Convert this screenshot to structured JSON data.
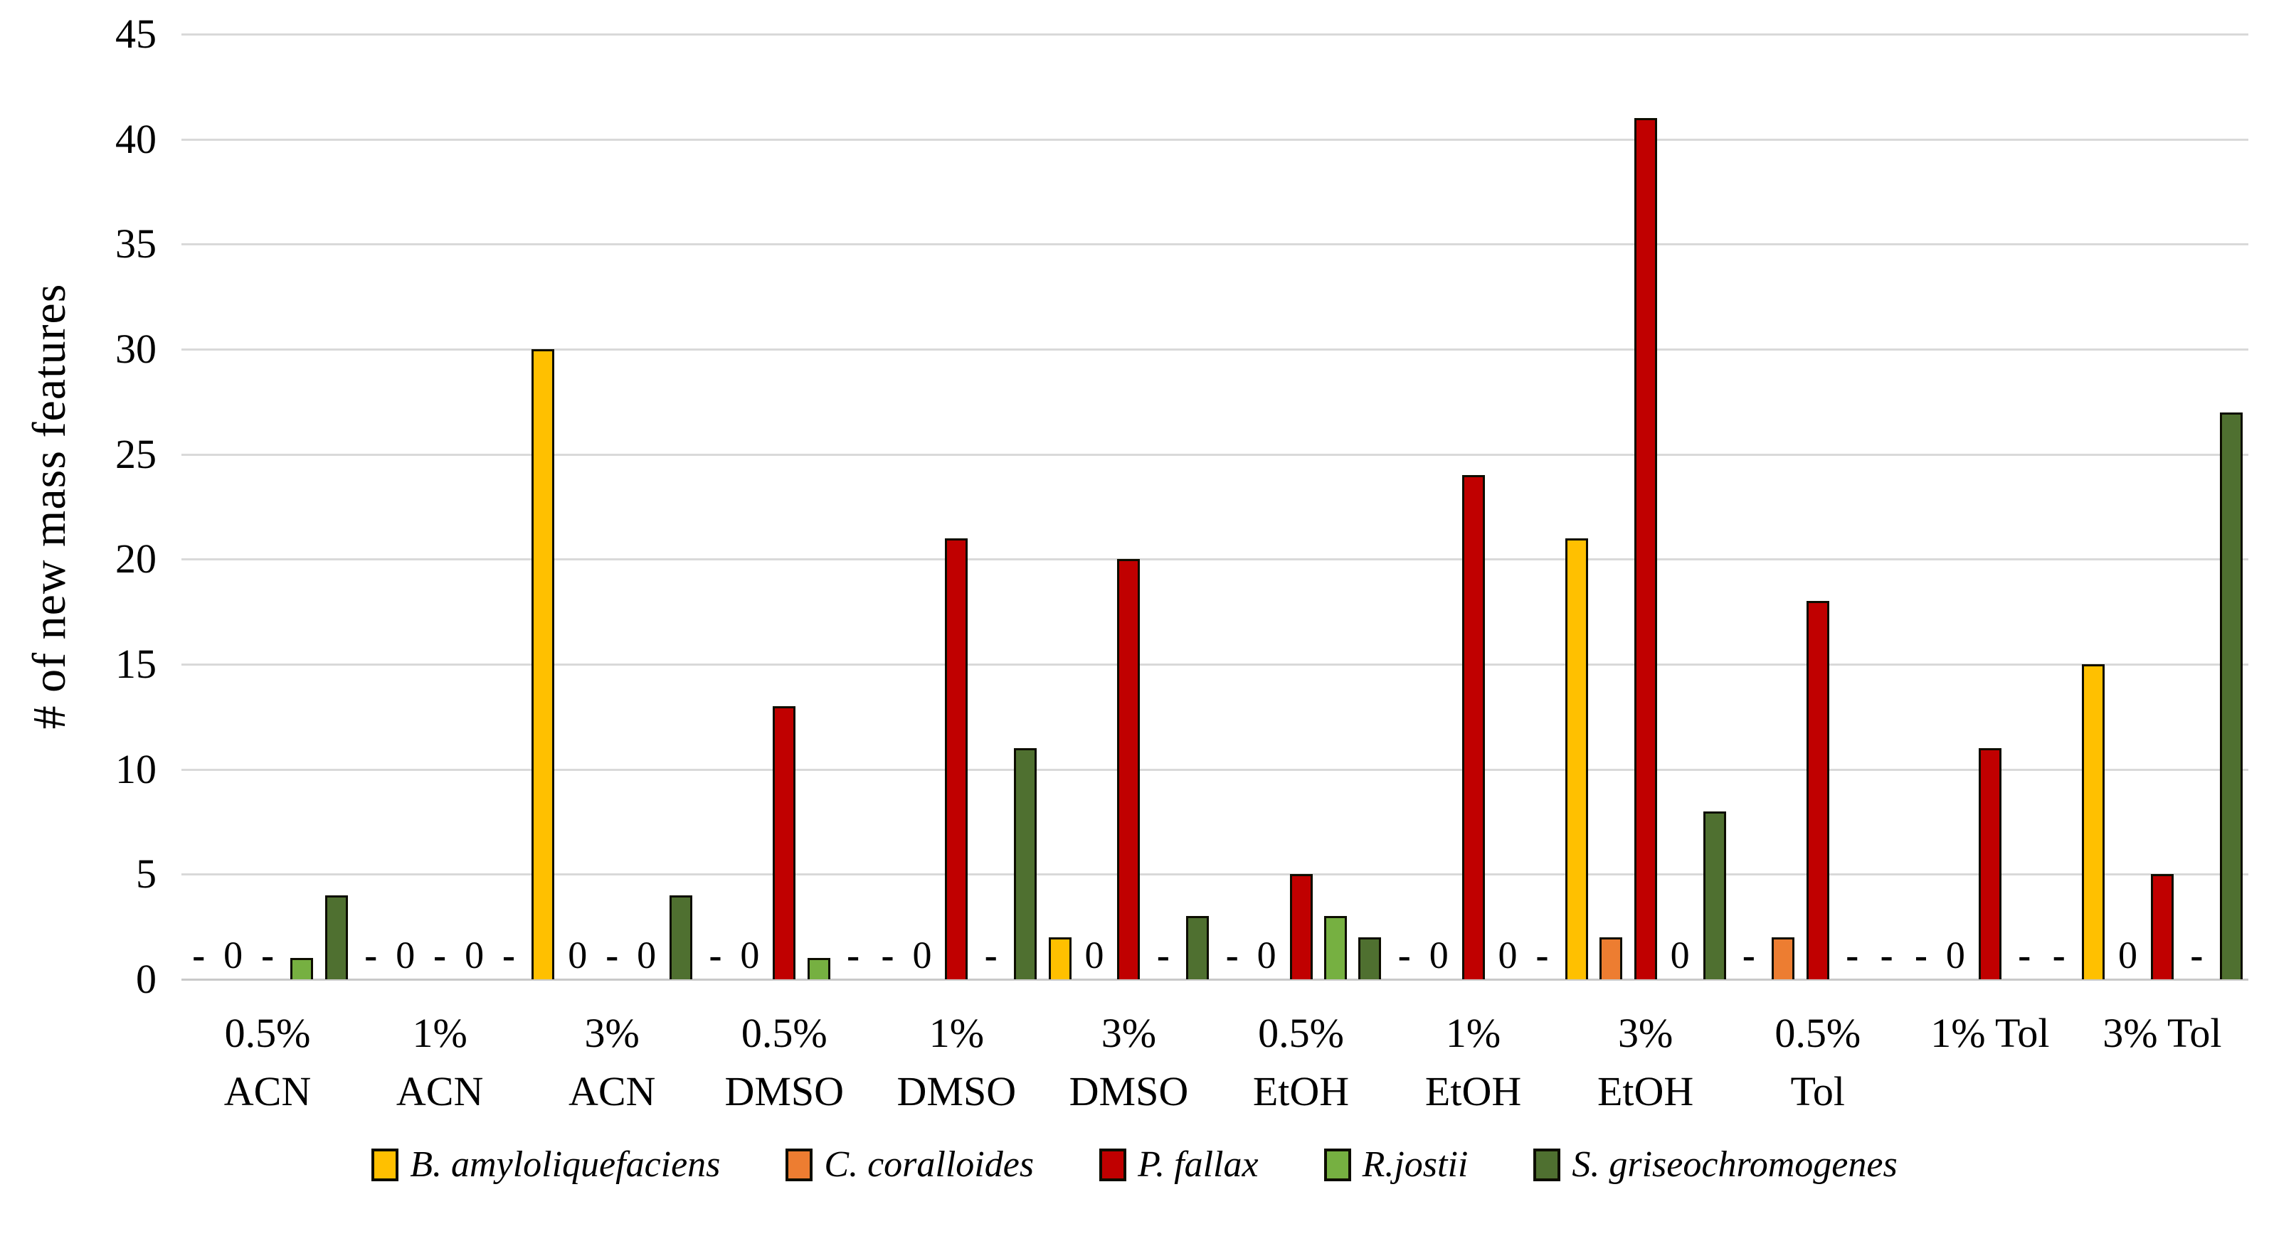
{
  "chart_data": {
    "type": "bar",
    "title": "",
    "xlabel": "",
    "ylabel": "# of new mass features",
    "ylim": [
      0,
      45
    ],
    "ytick_step": 5,
    "grid": true,
    "legend_position": "bottom",
    "zero_label": "0",
    "missing_label": "-",
    "categories": [
      {
        "label": "0.5% ACN",
        "lines": [
          "0.5%",
          "ACN"
        ]
      },
      {
        "label": "1% ACN",
        "lines": [
          "1%",
          "ACN"
        ]
      },
      {
        "label": "3% ACN",
        "lines": [
          "3%",
          "ACN"
        ]
      },
      {
        "label": "0.5% DMSO",
        "lines": [
          "0.5%",
          "DMSO"
        ]
      },
      {
        "label": "1% DMSO",
        "lines": [
          "1%",
          "DMSO"
        ]
      },
      {
        "label": "3% DMSO",
        "lines": [
          "3%",
          "DMSO"
        ]
      },
      {
        "label": "0.5% EtOH",
        "lines": [
          "0.5%",
          "EtOH"
        ]
      },
      {
        "label": "1% EtOH",
        "lines": [
          "1%",
          "EtOH"
        ]
      },
      {
        "label": "3% EtOH",
        "lines": [
          "3%",
          "EtOH"
        ]
      },
      {
        "label": "0.5% Tol",
        "lines": [
          "0.5%",
          "Tol"
        ]
      },
      {
        "label": "1% Tol",
        "lines": [
          "1% Tol"
        ]
      },
      {
        "label": "3% Tol",
        "lines": [
          "3% Tol"
        ]
      }
    ],
    "series": [
      {
        "name": "B. amyloliquefaciens",
        "color": "#FFC000",
        "values": [
          null,
          null,
          30,
          null,
          null,
          2,
          null,
          null,
          21,
          null,
          null,
          15
        ]
      },
      {
        "name": "C. coralloides",
        "color": "#ED7D31",
        "values": [
          0,
          0,
          0,
          0,
          0,
          0,
          0,
          0,
          2,
          2,
          0,
          0
        ]
      },
      {
        "name": "P. fallax",
        "color": "#C00000",
        "values": [
          null,
          null,
          null,
          13,
          21,
          20,
          5,
          24,
          41,
          18,
          11,
          5
        ]
      },
      {
        "name": "R.jostii",
        "color": "#76B041",
        "values": [
          1,
          0,
          0,
          1,
          null,
          null,
          3,
          0,
          0,
          null,
          null,
          null
        ]
      },
      {
        "name": "S. griseochromogenes",
        "color": "#4F7030",
        "values": [
          4,
          null,
          4,
          null,
          11,
          3,
          2,
          null,
          8,
          null,
          null,
          27
        ]
      }
    ]
  }
}
